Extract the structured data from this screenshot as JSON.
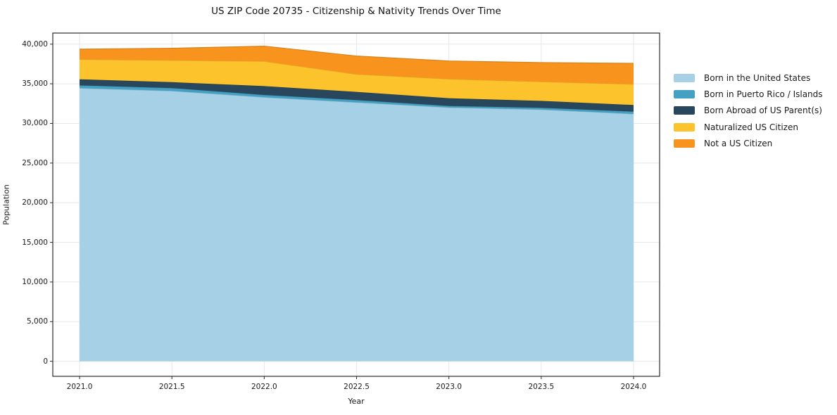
{
  "chart_data": {
    "type": "area",
    "stacked": true,
    "title": "US ZIP Code 20735 - Citizenship & Nativity Trends Over Time",
    "xlabel": "Year",
    "ylabel": "Population",
    "x": [
      2021.0,
      2021.5,
      2022.0,
      2022.5,
      2023.0,
      2023.5,
      2024.0
    ],
    "series": [
      {
        "name": "Born in the United States",
        "color": "#a5d0e6",
        "values": [
          34450,
          34100,
          33300,
          32650,
          32000,
          31750,
          31200
        ]
      },
      {
        "name": "Born in Puerto Rico / Islands",
        "color": "#44a1c3",
        "values": [
          350,
          360,
          290,
          290,
          210,
          220,
          300
        ]
      },
      {
        "name": "Born Abroad of US Parent(s)",
        "color": "#28475c",
        "values": [
          770,
          750,
          1120,
          1040,
          970,
          880,
          820
        ]
      },
      {
        "name": "Naturalized US Citizen",
        "color": "#fcc32d",
        "values": [
          2500,
          2750,
          3120,
          2220,
          2420,
          2410,
          2620
        ]
      },
      {
        "name": "Not a US Citizen",
        "color": "#f8941d",
        "values": [
          1300,
          1520,
          1920,
          2300,
          2280,
          2410,
          2640
        ]
      }
    ],
    "totals": [
      39370,
      39480,
      39750,
      38500,
      37880,
      37670,
      37580
    ],
    "xtick_labels": [
      "2021.0",
      "2021.5",
      "2022.0",
      "2022.5",
      "2023.0",
      "2023.5",
      "2024.0"
    ],
    "ytick_labels": [
      "0",
      "5,000",
      "10,000",
      "15,000",
      "20,000",
      "25,000",
      "30,000",
      "35,000",
      "40,000"
    ],
    "ytick_values": [
      0,
      5000,
      10000,
      15000,
      20000,
      25000,
      30000,
      35000,
      40000
    ],
    "xlim": [
      2020.855,
      2024.141
    ],
    "ylim": [
      -1900,
      41400
    ],
    "grid": true,
    "legend_position": "right",
    "grid_color": "#e7e7e7",
    "spine_color": "#2b2b2b",
    "background_color": "#ffffff"
  }
}
